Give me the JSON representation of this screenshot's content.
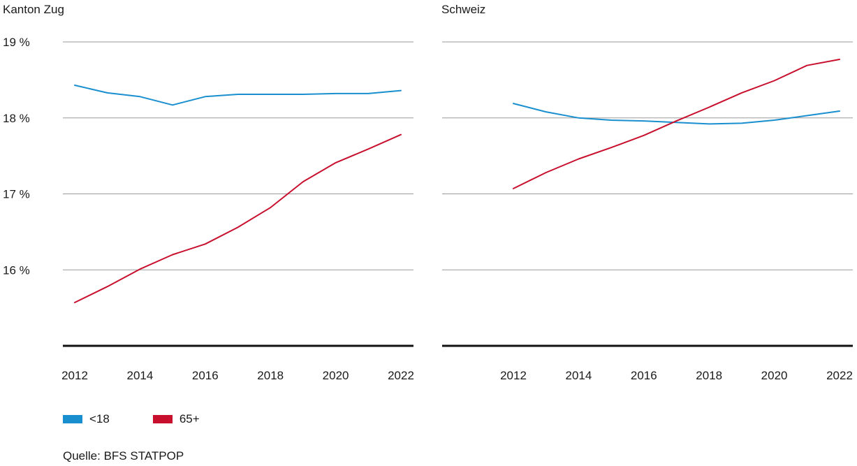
{
  "chart_data": [
    {
      "type": "line",
      "title": "Kanton Zug",
      "x": [
        2012,
        2013,
        2014,
        2015,
        2016,
        2017,
        2018,
        2019,
        2020,
        2021,
        2022
      ],
      "xticks": [
        "2012",
        "2014",
        "2016",
        "2018",
        "2020",
        "2022"
      ],
      "yticks": [
        "19 %",
        "18 %",
        "17 %",
        "16 %"
      ],
      "ylim": [
        15,
        19
      ],
      "grid": true,
      "series": [
        {
          "name": "<18",
          "color": "#1a8fcf",
          "values": [
            18.43,
            18.33,
            18.28,
            18.17,
            18.28,
            18.31,
            18.31,
            18.31,
            18.32,
            18.32,
            18.36
          ]
        },
        {
          "name": "65+",
          "color": "#c8102e",
          "values": [
            15.57,
            15.78,
            16.01,
            16.2,
            16.34,
            16.56,
            16.82,
            17.16,
            17.41,
            17.59,
            17.78
          ]
        }
      ]
    },
    {
      "type": "line",
      "title": "Schweiz",
      "x": [
        2012,
        2013,
        2014,
        2015,
        2016,
        2017,
        2018,
        2019,
        2020,
        2021,
        2022
      ],
      "xticks": [
        "2012",
        "2014",
        "2016",
        "2018",
        "2020",
        "2022"
      ],
      "ylim": [
        15,
        19
      ],
      "grid": true,
      "series": [
        {
          "name": "<18",
          "color": "#1a8fcf",
          "values": [
            18.19,
            18.08,
            18.0,
            17.97,
            17.96,
            17.94,
            17.92,
            17.93,
            17.97,
            18.03,
            18.09
          ]
        },
        {
          "name": "65+",
          "color": "#c8102e",
          "values": [
            17.07,
            17.28,
            17.46,
            17.61,
            17.77,
            17.96,
            18.14,
            18.33,
            18.49,
            18.69,
            18.77
          ]
        }
      ]
    }
  ],
  "legend": [
    {
      "label": "<18",
      "color": "#1a8fcf"
    },
    {
      "label": "65+",
      "color": "#c8102e"
    }
  ],
  "source": "Quelle: BFS STATPOP"
}
